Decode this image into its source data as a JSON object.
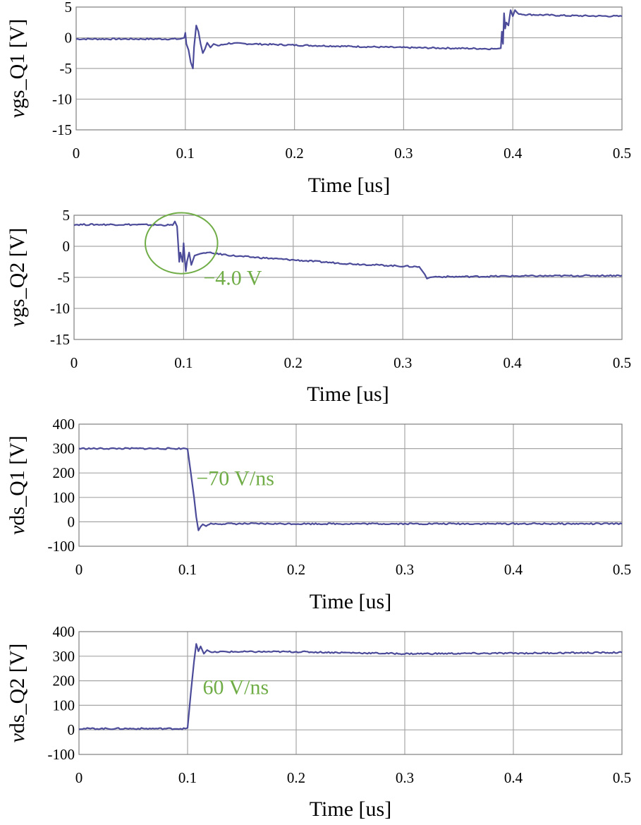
{
  "chart_data": [
    {
      "type": "line",
      "id": "vgs-q1",
      "ylabel_italic": "v",
      "ylabel_rest": "gs_Q1 [V]",
      "xlabel": "Time [us]",
      "xlim": [
        0,
        0.5
      ],
      "ylim": [
        -15,
        5
      ],
      "xticks": [
        0,
        0.1,
        0.2,
        0.3,
        0.4,
        0.5
      ],
      "xtick_labels": [
        "0",
        "0.1",
        "0.2",
        "0.3",
        "0.4",
        "0.5"
      ],
      "yticks": [
        5,
        0,
        -5,
        -10,
        -15
      ],
      "ytick_labels": [
        "5",
        "0",
        "-5",
        "-10",
        "-15"
      ],
      "zero_line": 0,
      "series": [
        {
          "name": "vgs_Q1",
          "x": [
            0,
            0.05,
            0.095,
            0.099,
            0.1,
            0.101,
            0.103,
            0.105,
            0.107,
            0.108,
            0.11,
            0.112,
            0.114,
            0.116,
            0.118,
            0.12,
            0.123,
            0.126,
            0.13,
            0.14,
            0.2,
            0.3,
            0.385,
            0.389,
            0.39,
            0.391,
            0.392,
            0.393,
            0.394,
            0.396,
            0.398,
            0.4,
            0.402,
            0.404,
            0.41,
            0.45,
            0.5
          ],
          "y": [
            -0.2,
            -0.2,
            -0.2,
            0.0,
            0.8,
            -1.0,
            -2.0,
            -4.0,
            -5.0,
            -1.5,
            2.0,
            1.0,
            -1.0,
            -2.5,
            -1.8,
            -0.8,
            -1.6,
            -1.0,
            -1.3,
            -0.9,
            -1.2,
            -1.6,
            -1.8,
            -1.7,
            1.0,
            -1.0,
            4.0,
            1.5,
            2.5,
            2.0,
            4.5,
            3.5,
            4.5,
            4.0,
            3.8,
            3.6,
            3.5
          ]
        }
      ]
    },
    {
      "type": "line",
      "id": "vgs-q2",
      "ylabel_italic": "v",
      "ylabel_rest": "gs_Q2 [V]",
      "xlabel": "Time [us]",
      "xlim": [
        0,
        0.5
      ],
      "ylim": [
        -15,
        5
      ],
      "xticks": [
        0,
        0.1,
        0.2,
        0.3,
        0.4,
        0.5
      ],
      "xtick_labels": [
        "0",
        "0.1",
        "0.2",
        "0.3",
        "0.4",
        "0.5"
      ],
      "yticks": [
        5,
        0,
        -5,
        -10,
        -15
      ],
      "ytick_labels": [
        "5",
        "0",
        "-5",
        "-10",
        "-15"
      ],
      "dark_line": -10,
      "series": [
        {
          "name": "vgs_Q2",
          "x": [
            0,
            0.05,
            0.09,
            0.092,
            0.094,
            0.095,
            0.096,
            0.097,
            0.099,
            0.1,
            0.101,
            0.102,
            0.103,
            0.105,
            0.107,
            0.11,
            0.115,
            0.12,
            0.15,
            0.2,
            0.25,
            0.3,
            0.315,
            0.32,
            0.322,
            0.325,
            0.33,
            0.35,
            0.4,
            0.5
          ],
          "y": [
            3.5,
            3.5,
            3.4,
            4.0,
            3.2,
            0.5,
            -2.5,
            -1.0,
            -2.5,
            0.5,
            -2.0,
            -4.0,
            -2.5,
            -1.0,
            -3.0,
            -1.5,
            -1.2,
            -1.0,
            -1.6,
            -2.2,
            -2.8,
            -3.2,
            -3.3,
            -4.5,
            -5.2,
            -5.0,
            -4.9,
            -4.9,
            -4.8,
            -4.7
          ]
        }
      ],
      "circle": {
        "x": 0.098,
        "y": 0.5,
        "rx": 0.033,
        "ry": 4.9
      },
      "annotation": {
        "text": "−4.0 V",
        "x": 0.118,
        "y": -6.2
      },
      "annotation_color": "#70ad47"
    },
    {
      "type": "line",
      "id": "vds-q1",
      "ylabel_italic": "v",
      "ylabel_rest": "ds_Q1 [V]",
      "xlabel": "Time [us]",
      "xlim": [
        0,
        0.5
      ],
      "ylim": [
        -100,
        400
      ],
      "xticks": [
        0,
        0.1,
        0.2,
        0.3,
        0.4,
        0.5
      ],
      "xtick_labels": [
        "0",
        "0.1",
        "0.2",
        "0.3",
        "0.4",
        "0.5"
      ],
      "yticks": [
        400,
        300,
        200,
        100,
        0,
        -100
      ],
      "ytick_labels": [
        "400",
        "300",
        "200",
        "100",
        "0",
        "-100"
      ],
      "series": [
        {
          "name": "vds_Q1",
          "x": [
            0,
            0.05,
            0.098,
            0.1,
            0.103,
            0.106,
            0.108,
            0.11,
            0.112,
            0.114,
            0.117,
            0.12,
            0.13,
            0.2,
            0.3,
            0.4,
            0.5
          ],
          "y": [
            300,
            300,
            300,
            298,
            200,
            100,
            20,
            -35,
            -20,
            -10,
            -18,
            -8,
            -8,
            -8,
            -8,
            -8,
            -8
          ]
        }
      ],
      "annotation": {
        "text": "−70 V/ns",
        "x": 0.108,
        "y": 150
      },
      "annotation_color": "#70ad47"
    },
    {
      "type": "line",
      "id": "vds-q2",
      "ylabel_italic": "v",
      "ylabel_rest": "ds_Q2 [V]",
      "xlabel": "Time [us]",
      "xlim": [
        0,
        0.5
      ],
      "ylim": [
        -100,
        400
      ],
      "xticks": [
        0,
        0.1,
        0.2,
        0.3,
        0.4,
        0.5
      ],
      "xtick_labels": [
        "0",
        "0.1",
        "0.2",
        "0.3",
        "0.4",
        "0.5"
      ],
      "yticks": [
        400,
        300,
        200,
        100,
        0,
        -100
      ],
      "ytick_labels": [
        "400",
        "300",
        "200",
        "100",
        "0",
        "-100"
      ],
      "series": [
        {
          "name": "vds_Q2",
          "x": [
            0,
            0.05,
            0.098,
            0.1,
            0.103,
            0.106,
            0.108,
            0.11,
            0.112,
            0.115,
            0.118,
            0.122,
            0.13,
            0.2,
            0.3,
            0.4,
            0.5
          ],
          "y": [
            5,
            5,
            5,
            8,
            150,
            280,
            350,
            320,
            340,
            310,
            325,
            315,
            318,
            318,
            310,
            312,
            315
          ]
        }
      ],
      "annotation": {
        "text": "60 V/ns",
        "x": 0.114,
        "y": 145
      },
      "annotation_color": "#70ad47"
    }
  ]
}
